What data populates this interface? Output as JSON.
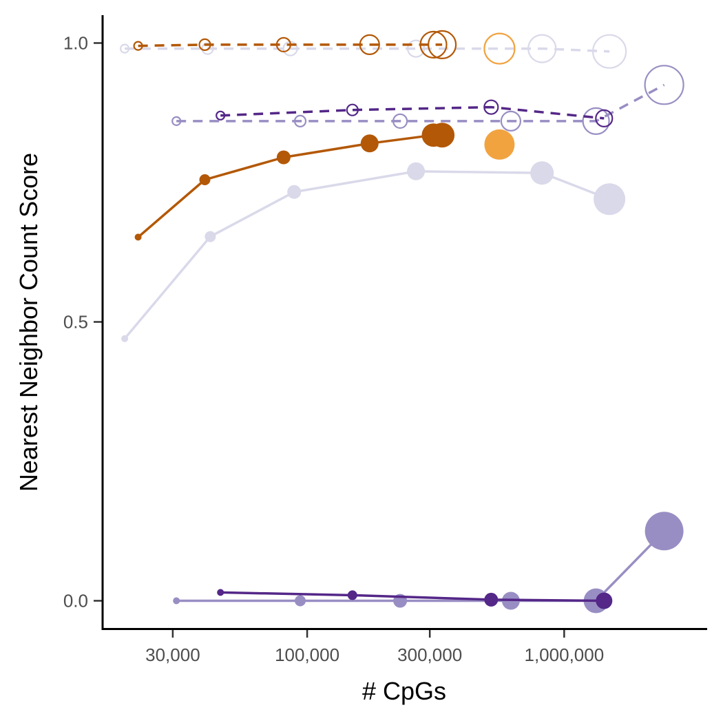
{
  "chart_data": {
    "type": "scatter",
    "title": "",
    "xlabel": "# CpGs",
    "ylabel": "Nearest Neighbor Count Score",
    "x_scale": "log10",
    "xlim": [
      16000,
      3600000
    ],
    "ylim": [
      -0.05,
      1.05
    ],
    "x_ticks": [
      30000,
      100000,
      300000,
      1000000
    ],
    "x_tick_labels": [
      "30,000",
      "100,000",
      "300,000",
      "1,000,000"
    ],
    "y_ticks": [
      0.0,
      0.5,
      1.0
    ],
    "y_tick_labels": [
      "0.0",
      "0.5",
      "1.0"
    ],
    "grid": false,
    "legend": "none",
    "point_size": "increases with # CpGs within each series",
    "series": [
      {
        "color": "#d9d9ea",
        "line": "dashed",
        "marker": "open",
        "x": [
          19500,
          41000,
          86000,
          265000,
          820000,
          1500000
        ],
        "y": [
          0.99,
          0.99,
          0.99,
          0.99,
          0.99,
          0.985
        ],
        "r": [
          6,
          8,
          10,
          12,
          20,
          24
        ]
      },
      {
        "color": "#b35806",
        "line": "dashed",
        "marker": "open",
        "x": [
          22000,
          40000,
          81000,
          175000,
          310000,
          335000
        ],
        "y": [
          0.995,
          0.997,
          0.997,
          0.997,
          0.997,
          0.997
        ],
        "r": [
          6,
          8,
          10,
          14,
          19,
          20
        ]
      },
      {
        "color": "#f1a340",
        "line": "none",
        "marker": "open",
        "x": [
          560000
        ],
        "y": [
          0.99
        ],
        "r": [
          22
        ]
      },
      {
        "color": "#998ec3",
        "line": "dashed",
        "marker": "open",
        "x": [
          31000,
          94000,
          230000,
          620000,
          1330000,
          2450000
        ],
        "y": [
          0.86,
          0.86,
          0.86,
          0.86,
          0.86,
          0.925
        ],
        "r": [
          6,
          8,
          10,
          14,
          19,
          28
        ]
      },
      {
        "color": "#542788",
        "line": "dashed",
        "marker": "open",
        "x": [
          46000,
          150000,
          520000,
          1430000
        ],
        "y": [
          0.87,
          0.88,
          0.885,
          0.865
        ],
        "r": [
          6,
          8,
          10,
          12
        ]
      },
      {
        "color": "#d9d9ea",
        "line": "solid",
        "marker": "filled",
        "x": [
          19500,
          42000,
          89000,
          265000,
          820000,
          1500000
        ],
        "y": [
          0.47,
          0.653,
          0.733,
          0.77,
          0.767,
          0.72
        ],
        "r": [
          5,
          8,
          10,
          13,
          17,
          23
        ]
      },
      {
        "color": "#b35806",
        "line": "solid",
        "marker": "filled",
        "x": [
          22000,
          40000,
          81000,
          175000,
          310000,
          335000
        ],
        "y": [
          0.652,
          0.755,
          0.795,
          0.82,
          0.835,
          0.835
        ],
        "r": [
          5,
          8,
          10,
          13,
          17,
          18
        ]
      },
      {
        "color": "#f1a340",
        "line": "none",
        "marker": "filled",
        "x": [
          560000
        ],
        "y": [
          0.818
        ],
        "r": [
          22
        ]
      },
      {
        "color": "#998ec3",
        "line": "solid",
        "marker": "filled",
        "x": [
          31000,
          94000,
          230000,
          620000,
          1330000,
          2450000
        ],
        "y": [
          0.0,
          0.0,
          0.0,
          0.0,
          0.0,
          0.125
        ],
        "r": [
          5,
          8,
          10,
          13,
          18,
          28
        ]
      },
      {
        "color": "#542788",
        "line": "solid",
        "marker": "filled",
        "x": [
          46000,
          150000,
          520000,
          1430000
        ],
        "y": [
          0.015,
          0.01,
          0.002,
          0.0
        ],
        "r": [
          5,
          7,
          10,
          12
        ]
      }
    ]
  }
}
